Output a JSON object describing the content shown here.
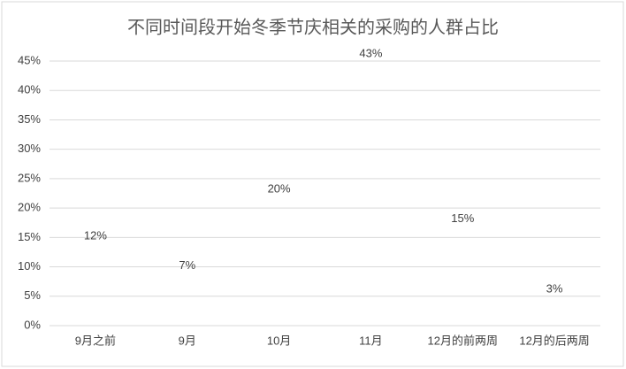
{
  "chart_data": {
    "type": "line",
    "title": "不同时间段开始冬季节庆相关的采购的人群占比",
    "categories": [
      "9月之前",
      "9月",
      "10月",
      "11月",
      "12月的前两周",
      "12月的后两周"
    ],
    "series": [
      {
        "color": "#ed7d31",
        "values": [
          12,
          7,
          20,
          43,
          15,
          3
        ],
        "value_labels": [
          "12%",
          "7%",
          "20%",
          "43%",
          "15%",
          "3%"
        ]
      }
    ],
    "ylim": [
      0,
      45
    ],
    "yticks": [
      {
        "value": 0,
        "label": "0%"
      },
      {
        "value": 5,
        "label": "5%"
      },
      {
        "value": 10,
        "label": "10%"
      },
      {
        "value": 15,
        "label": "15%"
      },
      {
        "value": 20,
        "label": "20%"
      },
      {
        "value": 25,
        "label": "25%"
      },
      {
        "value": 30,
        "label": "30%"
      },
      {
        "value": 35,
        "label": "35%"
      },
      {
        "value": 40,
        "label": "40%"
      },
      {
        "value": 45,
        "label": "45%"
      }
    ],
    "grid": true
  }
}
